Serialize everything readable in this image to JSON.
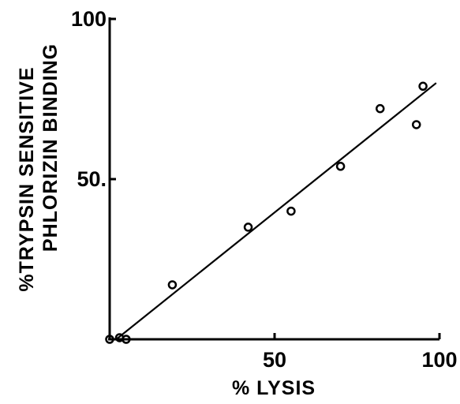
{
  "chart_data": {
    "type": "scatter",
    "xlabel": "% LYSIS",
    "ylabel": [
      "%TRYPSIN SENSITIVE",
      "PHLORIZIN BINDING"
    ],
    "xlim": [
      0,
      100
    ],
    "ylim": [
      0,
      100
    ],
    "x_ticks": [
      {
        "value": 50,
        "label": "50"
      },
      {
        "value": 100,
        "label": "100"
      }
    ],
    "y_ticks": [
      {
        "value": 50,
        "label": "50."
      },
      {
        "value": 100,
        "label": "100"
      }
    ],
    "grid": false,
    "series": [
      {
        "points": [
          {
            "x": 0,
            "y": 0
          },
          {
            "x": 3,
            "y": 0.5
          },
          {
            "x": 5,
            "y": 0
          },
          {
            "x": 19,
            "y": 17
          },
          {
            "x": 42,
            "y": 35
          },
          {
            "x": 55,
            "y": 40
          },
          {
            "x": 70,
            "y": 54
          },
          {
            "x": 82,
            "y": 72
          },
          {
            "x": 93,
            "y": 67
          },
          {
            "x": 95,
            "y": 79
          }
        ]
      }
    ],
    "fit_line": {
      "x": [
        2,
        99
      ],
      "y": [
        0,
        80
      ]
    }
  }
}
